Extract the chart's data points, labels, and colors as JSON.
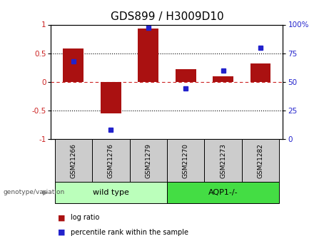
{
  "title": "GDS899 / H3009D10",
  "samples": [
    "GSM21266",
    "GSM21276",
    "GSM21279",
    "GSM21270",
    "GSM21273",
    "GSM21282"
  ],
  "log_ratio": [
    0.58,
    -0.55,
    0.93,
    0.22,
    0.1,
    0.32
  ],
  "percentile_rank": [
    68,
    8,
    97,
    44,
    60,
    80
  ],
  "bar_color": "#aa1111",
  "dot_color": "#2222cc",
  "ylim_left": [
    -1.0,
    1.0
  ],
  "ylim_right": [
    0,
    100
  ],
  "yticks_left": [
    -1,
    -0.5,
    0,
    0.5,
    1
  ],
  "yticks_right": [
    0,
    25,
    50,
    75,
    100
  ],
  "hlines_dotted": [
    -0.5,
    0.5
  ],
  "hline_dashed": 0,
  "groups": [
    {
      "label": "wild type",
      "indices": [
        0,
        1,
        2
      ],
      "color": "#bbffbb"
    },
    {
      "label": "AQP1-/-",
      "indices": [
        3,
        4,
        5
      ],
      "color": "#44dd44"
    }
  ],
  "group_label_prefix": "genotype/variation",
  "legend_items": [
    {
      "label": "log ratio",
      "color": "#aa1111"
    },
    {
      "label": "percentile rank within the sample",
      "color": "#2222cc"
    }
  ],
  "bar_width": 0.55,
  "title_fontsize": 11,
  "tick_fontsize": 7.5,
  "axis_label_color_left": "#cc2222",
  "axis_label_color_right": "#2222cc"
}
